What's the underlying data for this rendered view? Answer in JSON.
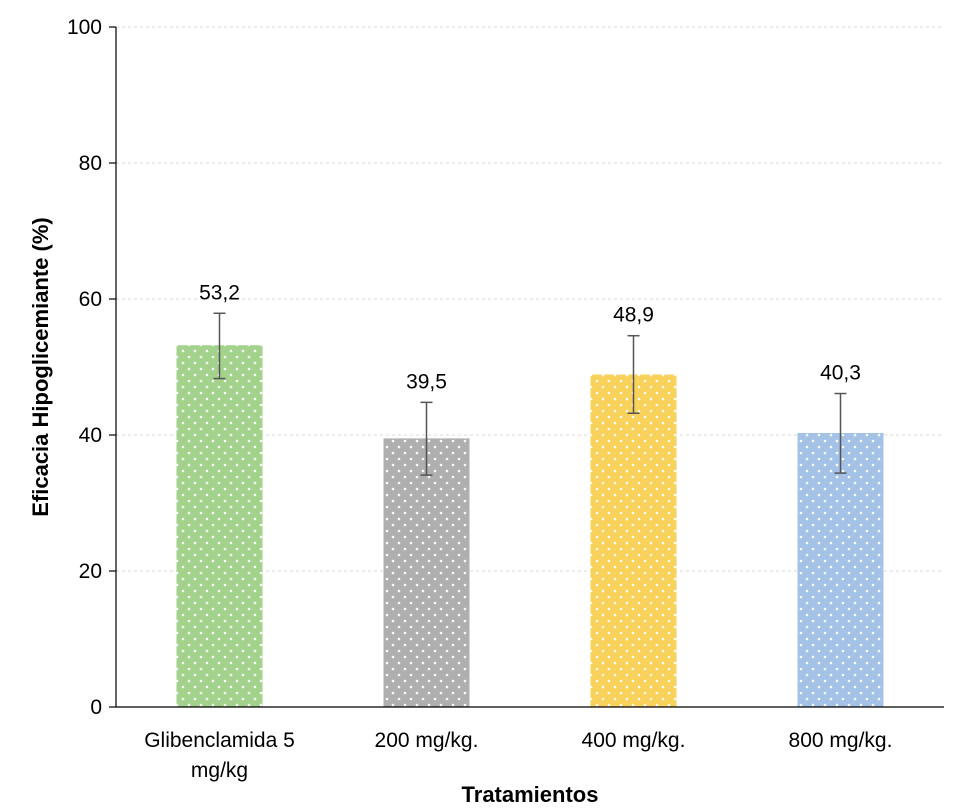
{
  "chart_data": {
    "type": "bar",
    "title": "",
    "xlabel": "Tratamientos",
    "ylabel": "Eficacia Hipoglicemiante (%)",
    "ylim": [
      0,
      100
    ],
    "yticks": [
      0,
      20,
      40,
      60,
      80,
      100
    ],
    "grid": true,
    "legend": "none",
    "categories": [
      [
        "Glibenclamida 5",
        "mg/kg"
      ],
      [
        "200 mg/kg."
      ],
      [
        "400 mg/kg."
      ],
      [
        "800 mg/kg."
      ]
    ],
    "values": [
      53.2,
      39.5,
      48.9,
      40.3
    ],
    "value_labels": [
      "53,2",
      "39,5",
      "48,9",
      "40,3"
    ],
    "error_high": [
      57.9,
      44.8,
      54.6,
      46.1
    ],
    "error_low": [
      48.3,
      34.1,
      43.2,
      34.4
    ],
    "colors": [
      "#8fc873",
      "#9d9d9d",
      "#f7c836",
      "#8fb4df"
    ]
  }
}
